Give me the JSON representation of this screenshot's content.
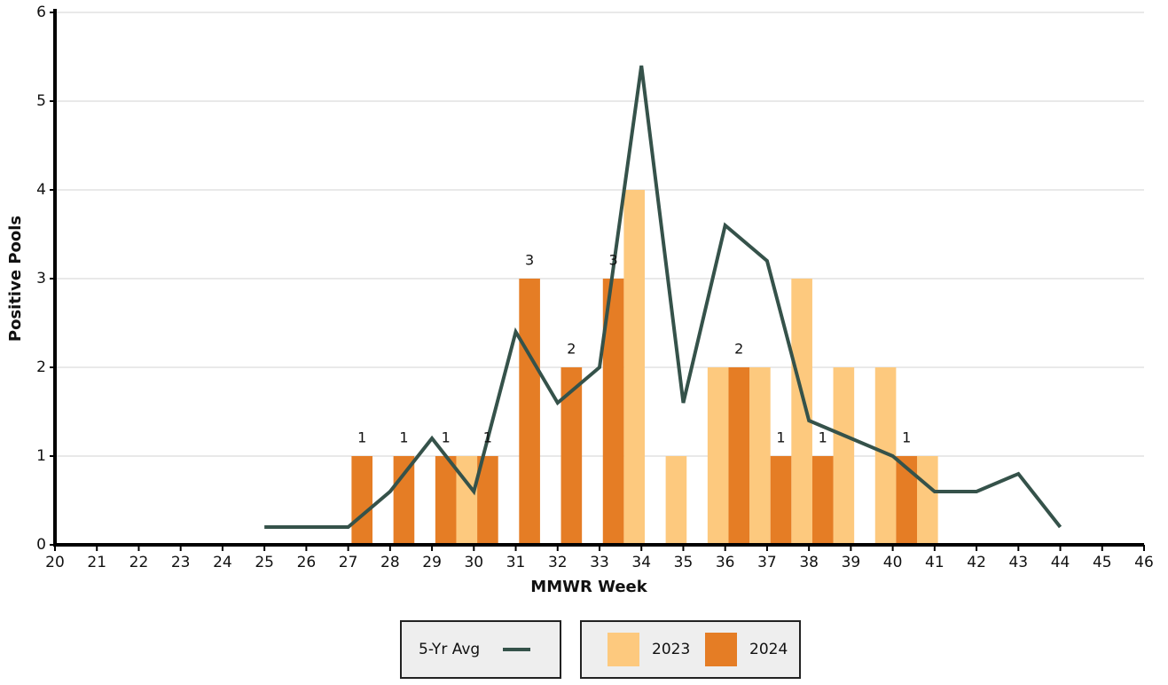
{
  "chart_data": {
    "type": "bar",
    "x_label": "MMWR Week",
    "y_label": "Positive Pools",
    "xlim": [
      20,
      46
    ],
    "xticks": [
      20,
      21,
      22,
      23,
      24,
      25,
      26,
      27,
      28,
      29,
      30,
      31,
      32,
      33,
      34,
      35,
      36,
      37,
      38,
      39,
      40,
      41,
      42,
      43,
      44,
      45,
      46
    ],
    "ylim": [
      0,
      6
    ],
    "yticks": [
      0,
      1,
      2,
      3,
      4,
      5,
      6
    ],
    "grid": true,
    "series": [
      {
        "name": "2023",
        "color": "#fdc97e",
        "x": [
          29,
          33,
          34,
          35,
          36,
          37,
          38,
          39,
          40
        ],
        "values": [
          1,
          4,
          1,
          2,
          2,
          3,
          2,
          2,
          1
        ]
      },
      {
        "name": "2024",
        "color": "#e57d25",
        "x": [
          27,
          28,
          29,
          30,
          31,
          32,
          33,
          36,
          37,
          38,
          40
        ],
        "values": [
          1,
          1,
          1,
          1,
          3,
          2,
          3,
          2,
          1,
          1,
          1
        ],
        "data_labels": true
      },
      {
        "name": "5-Yr Avg",
        "type": "line",
        "color": "#35524a",
        "x": [
          25,
          26,
          27,
          28,
          29,
          30,
          31,
          32,
          33,
          34,
          35,
          36,
          37,
          38,
          39,
          40,
          41,
          42,
          43,
          44
        ],
        "values": [
          0.2,
          0.2,
          0.2,
          0.6,
          1.2,
          0.6,
          2.4,
          1.6,
          2.0,
          5.4,
          1.6,
          3.6,
          3.2,
          1.4,
          1.2,
          1.0,
          0.6,
          0.6,
          0.8,
          0.2
        ]
      }
    ]
  }
}
